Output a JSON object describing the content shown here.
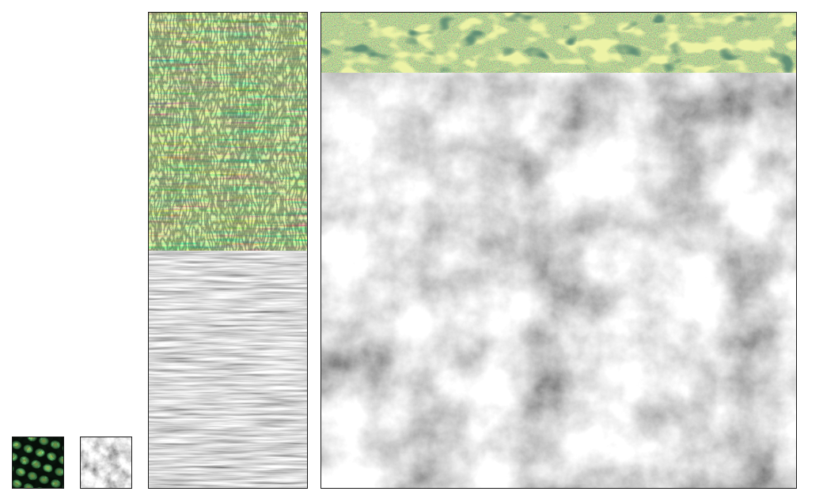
{
  "panels": [
    {
      "id": "thumb-color",
      "kind": "cellular-texture"
    },
    {
      "id": "thumb-gray",
      "kind": "cloud-noise"
    },
    {
      "id": "strip-color",
      "kind": "stretched-cellular-texture"
    },
    {
      "id": "strip-gray",
      "kind": "stretched-noise-texture"
    },
    {
      "id": "big-top",
      "kind": "speckle-texture"
    },
    {
      "id": "big-cloud",
      "kind": "cloud-noise"
    }
  ],
  "colors": {
    "dark_green": "#0c1a10",
    "mid_green": "#3f8a4a",
    "bright_green": "#7ee28a",
    "yellow_green": "#d8e85a",
    "cloud_light": "#f4f4f4",
    "cloud_dark": "#3a3a3a"
  }
}
